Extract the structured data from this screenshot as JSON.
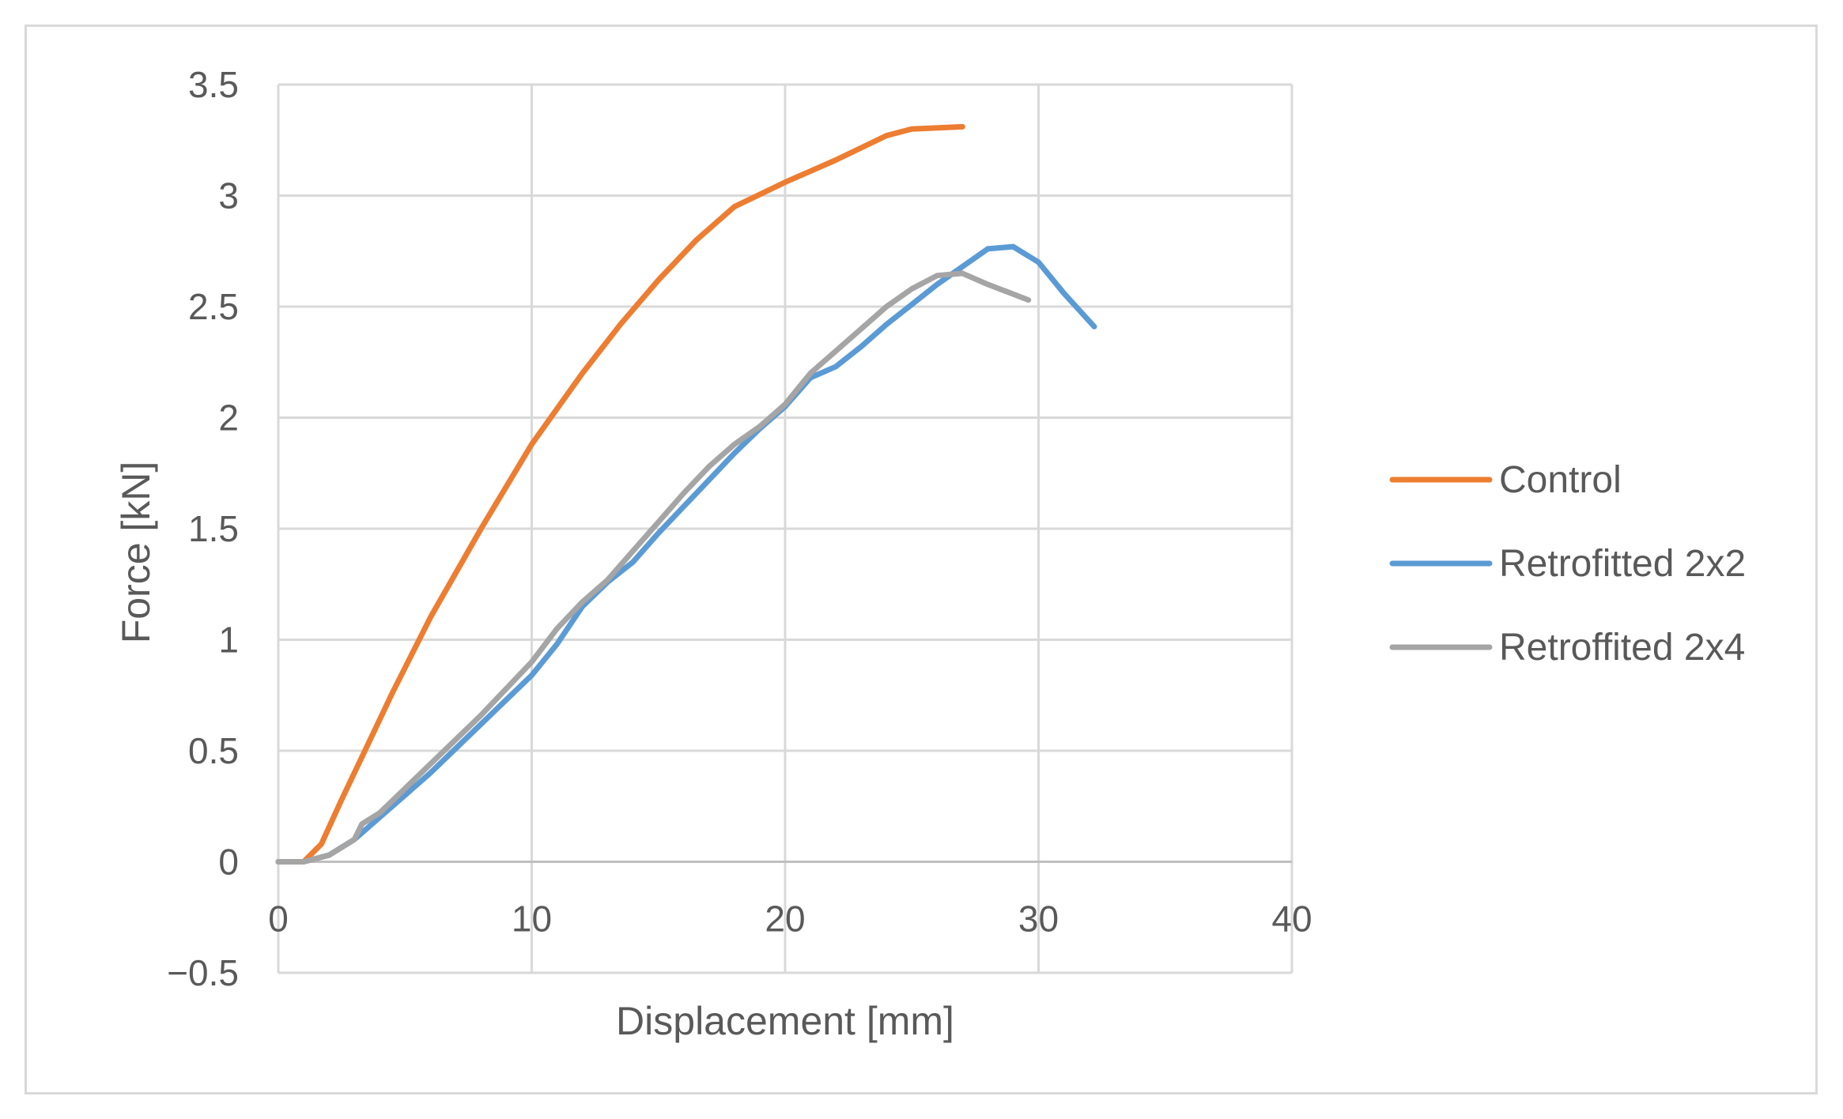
{
  "chart_data": {
    "type": "line",
    "title": "",
    "xlabel": "Displacement  [mm]",
    "ylabel": "Force  [kN]",
    "xlim": [
      0,
      40
    ],
    "ylim": [
      -0.5,
      3.5
    ],
    "xticks": [
      0,
      10,
      20,
      30,
      40
    ],
    "yticks": [
      -0.5,
      0,
      0.5,
      1,
      1.5,
      2,
      2.5,
      3,
      3.5
    ],
    "xtick_labels": [
      "0",
      "10",
      "20",
      "30",
      "40"
    ],
    "ytick_labels": [
      "−0.5",
      "0",
      "0.5",
      "1",
      "1.5",
      "2",
      "2.5",
      "3",
      "3.5"
    ],
    "grid": true,
    "legend": "right",
    "series": [
      {
        "name": "Control",
        "color": "#ed7d31",
        "points": [
          [
            0,
            0
          ],
          [
            1,
            0
          ],
          [
            1.7,
            0.08
          ],
          [
            2.5,
            0.28
          ],
          [
            3.5,
            0.52
          ],
          [
            4.5,
            0.76
          ],
          [
            6,
            1.1
          ],
          [
            8,
            1.5
          ],
          [
            10,
            1.88
          ],
          [
            12,
            2.2
          ],
          [
            13.5,
            2.42
          ],
          [
            15,
            2.62
          ],
          [
            16.5,
            2.8
          ],
          [
            18,
            2.95
          ],
          [
            20,
            3.06
          ],
          [
            22,
            3.16
          ],
          [
            24,
            3.27
          ],
          [
            25,
            3.3
          ],
          [
            27,
            3.31
          ]
        ]
      },
      {
        "name": "Retrofitted 2x2",
        "color": "#5b9bd5",
        "points": [
          [
            0,
            0
          ],
          [
            1,
            0
          ],
          [
            2,
            0.03
          ],
          [
            3,
            0.1
          ],
          [
            4,
            0.2
          ],
          [
            6,
            0.4
          ],
          [
            8,
            0.62
          ],
          [
            10,
            0.84
          ],
          [
            11,
            0.98
          ],
          [
            12,
            1.15
          ],
          [
            13,
            1.26
          ],
          [
            14,
            1.35
          ],
          [
            15,
            1.48
          ],
          [
            16,
            1.6
          ],
          [
            17,
            1.72
          ],
          [
            18,
            1.84
          ],
          [
            19,
            1.95
          ],
          [
            20,
            2.05
          ],
          [
            21,
            2.18
          ],
          [
            22,
            2.23
          ],
          [
            23,
            2.32
          ],
          [
            24,
            2.42
          ],
          [
            25,
            2.51
          ],
          [
            26,
            2.6
          ],
          [
            27,
            2.68
          ],
          [
            28,
            2.76
          ],
          [
            29,
            2.77
          ],
          [
            30,
            2.7
          ],
          [
            31,
            2.56
          ],
          [
            32.2,
            2.41
          ]
        ]
      },
      {
        "name": "Retroffited 2x4",
        "color": "#a5a5a5",
        "points": [
          [
            0,
            0
          ],
          [
            1,
            0
          ],
          [
            2,
            0.03
          ],
          [
            3,
            0.1
          ],
          [
            3.3,
            0.17
          ],
          [
            4,
            0.22
          ],
          [
            6,
            0.44
          ],
          [
            8,
            0.66
          ],
          [
            10,
            0.9
          ],
          [
            11,
            1.05
          ],
          [
            12,
            1.17
          ],
          [
            13,
            1.27
          ],
          [
            14,
            1.4
          ],
          [
            15,
            1.53
          ],
          [
            16,
            1.66
          ],
          [
            17,
            1.78
          ],
          [
            18,
            1.88
          ],
          [
            19,
            1.96
          ],
          [
            20,
            2.06
          ],
          [
            21,
            2.2
          ],
          [
            22,
            2.3
          ],
          [
            23,
            2.4
          ],
          [
            24,
            2.5
          ],
          [
            25,
            2.58
          ],
          [
            26,
            2.64
          ],
          [
            27,
            2.65
          ],
          [
            28,
            2.6
          ],
          [
            29.6,
            2.53
          ]
        ]
      }
    ]
  }
}
